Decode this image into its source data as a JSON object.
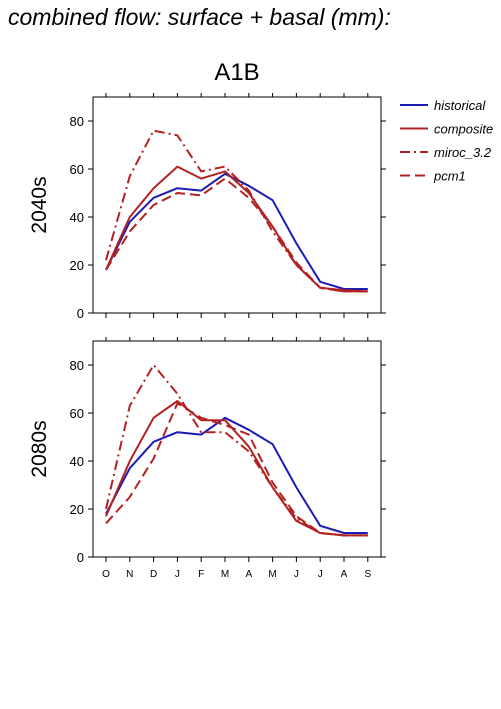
{
  "figure": {
    "title": "combined flow: surface + basal (mm):",
    "scenario": "A1B"
  },
  "chart_data": [
    {
      "type": "line",
      "panel_label": "2040s",
      "categories": [
        "O",
        "N",
        "D",
        "J",
        "F",
        "M",
        "A",
        "M",
        "J",
        "J",
        "A",
        "S"
      ],
      "ylim": [
        0,
        90
      ],
      "yticks": [
        0,
        20,
        40,
        60,
        80
      ],
      "series": [
        {
          "name": "historical",
          "color": "#1c1cb4",
          "dash": "solid",
          "values": [
            18,
            38,
            48,
            52,
            51,
            58,
            53,
            47,
            29,
            13,
            10,
            10
          ]
        },
        {
          "name": "composite",
          "color": "#b22222",
          "dash": "solid",
          "values": [
            18,
            40,
            52,
            61,
            56,
            59,
            50,
            36,
            20,
            10.5,
            9.5,
            9
          ]
        },
        {
          "name": "miroc_3.2",
          "color": "#b22222",
          "dash": "dashdot",
          "values": [
            22,
            57,
            76,
            74,
            59,
            61,
            51,
            34,
            20,
            10.5,
            9,
            9
          ]
        },
        {
          "name": "pcm1",
          "color": "#b22222",
          "dash": "dash",
          "values": [
            18,
            34,
            45,
            50,
            49,
            56,
            48,
            36,
            21,
            10.5,
            9,
            9
          ]
        }
      ]
    },
    {
      "type": "line",
      "panel_label": "2080s",
      "categories": [
        "O",
        "N",
        "D",
        "J",
        "F",
        "M",
        "A",
        "M",
        "J",
        "J",
        "A",
        "S"
      ],
      "ylim": [
        0,
        90
      ],
      "yticks": [
        0,
        20,
        40,
        60,
        80
      ],
      "series": [
        {
          "name": "historical",
          "color": "#1c1cb4",
          "dash": "solid",
          "values": [
            18,
            37,
            48,
            52,
            51,
            58,
            53,
            47,
            29,
            13,
            10,
            10
          ]
        },
        {
          "name": "composite",
          "color": "#b22222",
          "dash": "solid",
          "values": [
            17,
            40,
            58,
            65,
            57,
            57,
            46,
            29,
            15,
            10,
            9,
            9
          ]
        },
        {
          "name": "miroc_3.2",
          "color": "#b22222",
          "dash": "dashdot",
          "values": [
            20,
            63,
            80,
            68,
            52,
            52,
            44,
            29,
            16,
            10,
            9,
            9
          ]
        },
        {
          "name": "pcm1",
          "color": "#b22222",
          "dash": "dash",
          "values": [
            14,
            25,
            41,
            64,
            58,
            55,
            51,
            31,
            17,
            10,
            9,
            9
          ]
        }
      ]
    }
  ],
  "legend": {
    "placement": "top-right",
    "items": [
      {
        "label": "historical",
        "color": "#1c1cb4",
        "dash": "solid"
      },
      {
        "label": "composite",
        "color": "#b22222",
        "dash": "solid"
      },
      {
        "label": "miroc_3.2",
        "color": "#b22222",
        "dash": "dashdot"
      },
      {
        "label": "pcm1",
        "color": "#b22222",
        "dash": "dash"
      }
    ]
  }
}
